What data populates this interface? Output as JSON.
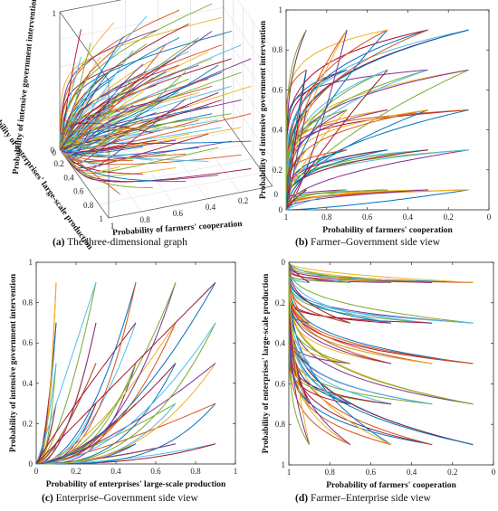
{
  "captions": [
    {
      "letter": "(a)",
      "text": "The three-dimensional graph"
    },
    {
      "letter": "(b)",
      "text": "Farmer–Government side view"
    },
    {
      "letter": "(c)",
      "text": "Enterprise–Government side view"
    },
    {
      "letter": "(d)",
      "text": "Farmer–Enterprise side view"
    }
  ],
  "chart_data": [
    {
      "id": "a",
      "type": "line",
      "view": "3d",
      "title": "",
      "xlabel": "Probability of farmers' cooperation",
      "ylabel": "Probability of enterprises' large-scale production",
      "zlabel": "Probability of intensive government intervention",
      "xlim": [
        0,
        1
      ],
      "ylim": [
        0,
        1
      ],
      "zlim": [
        0,
        1
      ],
      "xticks": [
        "1",
        "0.8",
        "0.6",
        "0.4",
        "0.2",
        "0"
      ],
      "yticks": [
        "0",
        "0.2",
        "0.4",
        "0.6",
        "0.8",
        "1"
      ],
      "zticks": [
        "0",
        "1"
      ],
      "grid": true,
      "series_note": "trajectories from initial points x in {0.1,0.3,0.5,0.7,0.9}, y in {0.1,0.3,0.5,0.7,0.9}, z in {0.1,0.3,0.5,0.7,0.9}, converging to (x=1, y=0, z=0)"
    },
    {
      "id": "b",
      "type": "line",
      "title": "",
      "xlabel": "Probability of farmers' cooperation",
      "ylabel": "Probability of intensive  government intervention",
      "xlim": [
        1,
        0
      ],
      "ylim": [
        0,
        1
      ],
      "xticks": [
        "1",
        "0.8",
        "0.6",
        "0.4",
        "0.2",
        "0"
      ],
      "yticks": [
        "0",
        "0.2",
        "0.4",
        "0.6",
        "0.8",
        "1"
      ],
      "start_x": [
        0.1,
        0.3,
        0.5,
        0.7,
        0.9
      ],
      "start_y": [
        0.1,
        0.3,
        0.5,
        0.7,
        0.9
      ],
      "end": [
        1,
        0
      ]
    },
    {
      "id": "c",
      "type": "line",
      "title": "",
      "xlabel": "Probability of enterprises' large-scale production",
      "ylabel": "Probability of intensive government intervention",
      "xlim": [
        0,
        1
      ],
      "ylim": [
        0,
        1
      ],
      "xticks": [
        "0",
        "0.2",
        "0.4",
        "0.6",
        "0.8",
        "1"
      ],
      "yticks": [
        "0",
        "0.2",
        "0.4",
        "0.6",
        "0.8",
        "1"
      ],
      "start_x": [
        0.1,
        0.3,
        0.5,
        0.7,
        0.9
      ],
      "start_y": [
        0.1,
        0.3,
        0.5,
        0.7,
        0.9
      ],
      "end": [
        0,
        0
      ]
    },
    {
      "id": "d",
      "type": "line",
      "title": "",
      "xlabel": "Probability of farmers' cooperation",
      "ylabel": "Probability of enterprises' large-scale production",
      "xlim": [
        1,
        0
      ],
      "ylim": [
        1,
        0
      ],
      "xticks": [
        "1",
        "0.8",
        "0.6",
        "0.4",
        "0.2",
        "0"
      ],
      "yticks": [
        "0",
        "0.2",
        "0.4",
        "0.6",
        "0.8",
        "1"
      ],
      "start_x": [
        0.1,
        0.3,
        0.5,
        0.7,
        0.9
      ],
      "start_y": [
        0.1,
        0.3,
        0.5,
        0.7,
        0.9
      ],
      "end": [
        1,
        0
      ]
    }
  ],
  "series_colors": [
    "#0072BD",
    "#D95319",
    "#EDB120",
    "#7E2F8E",
    "#77AC30",
    "#4DBEEE",
    "#A2142F"
  ]
}
